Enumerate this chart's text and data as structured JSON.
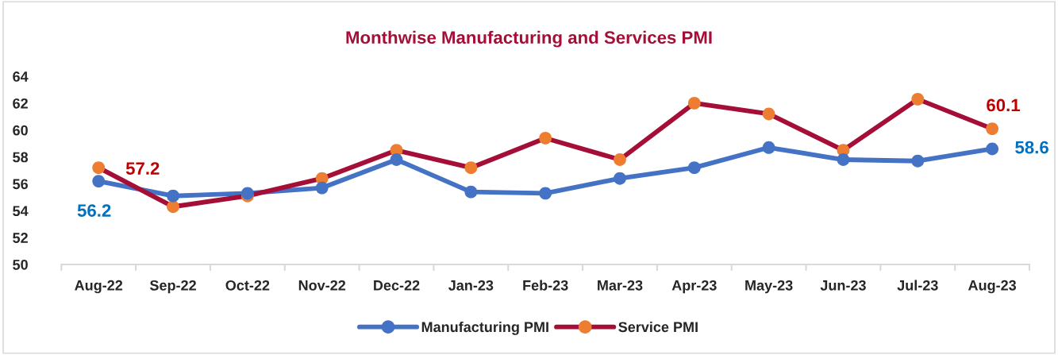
{
  "chart_data": {
    "type": "line",
    "title": "Monthwise Manufacturing and Services PMI",
    "categories": [
      "Aug-22",
      "Sep-22",
      "Oct-22",
      "Nov-22",
      "Dec-22",
      "Jan-23",
      "Feb-23",
      "Mar-23",
      "Apr-23",
      "May-23",
      "Jun-23",
      "Jul-23",
      "Aug-23"
    ],
    "series": [
      {
        "name": "Manufacturing PMI",
        "color": "#4472c4",
        "values": [
          56.2,
          55.1,
          55.3,
          55.7,
          57.8,
          55.4,
          55.3,
          56.4,
          57.2,
          58.7,
          57.8,
          57.7,
          58.6
        ],
        "value_labels": [
          "56.2",
          null,
          null,
          null,
          null,
          null,
          null,
          null,
          null,
          null,
          null,
          null,
          "58.6"
        ]
      },
      {
        "name": "Service PMI",
        "color": "#a50e36",
        "colors": [
          "#ed7d31",
          "#ed7d31",
          "#ed7d31",
          "#ed7d31",
          "#ed7d31",
          "#ed7d31",
          "#ed7d31",
          "#ed7d31",
          "#ed7d31",
          "#ed7d31",
          "#ed7d31",
          "#ed7d31",
          "#ed7d31"
        ],
        "values": [
          57.2,
          54.3,
          55.1,
          56.4,
          58.5,
          57.2,
          59.4,
          57.8,
          62.0,
          61.2,
          58.5,
          62.3,
          60.1
        ],
        "value_labels": [
          "57.2",
          null,
          null,
          null,
          null,
          null,
          null,
          null,
          null,
          null,
          null,
          null,
          "60.1"
        ]
      }
    ],
    "ylim": [
      50,
      64
    ],
    "yticks": [
      50,
      52,
      54,
      56,
      58,
      60,
      62,
      64
    ],
    "grid": false,
    "legend": "bottom",
    "marker": "circle",
    "line_style": "solid"
  }
}
